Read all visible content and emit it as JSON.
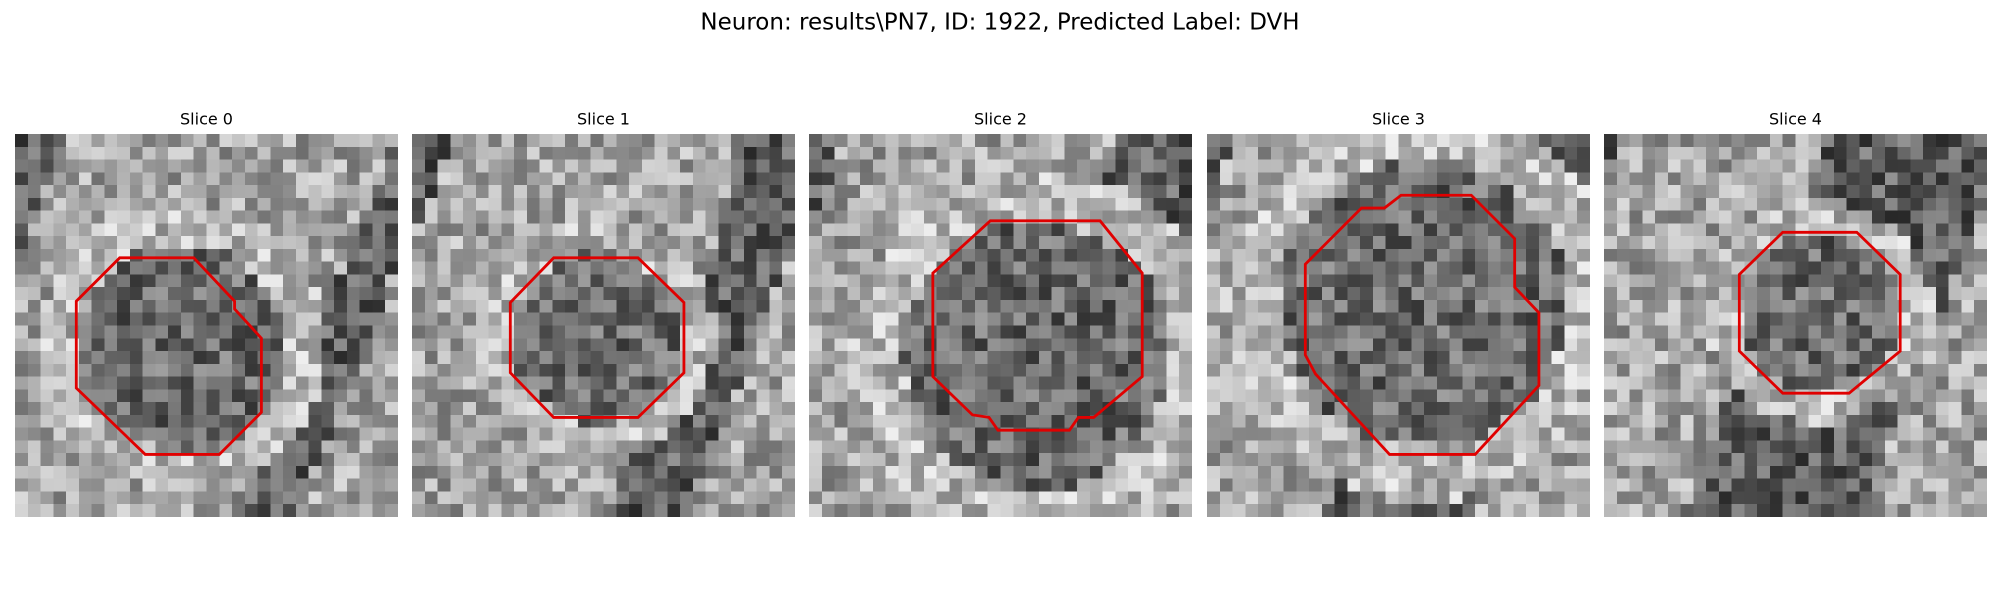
{
  "title": "Neuron: results\\PN7, ID: 1922, Predicted Label: DVH",
  "panels": [
    {
      "title": "Slice 0"
    },
    {
      "title": "Slice 1"
    },
    {
      "title": "Slice 2"
    },
    {
      "title": "Slice 3"
    },
    {
      "title": "Slice 4"
    }
  ]
}
